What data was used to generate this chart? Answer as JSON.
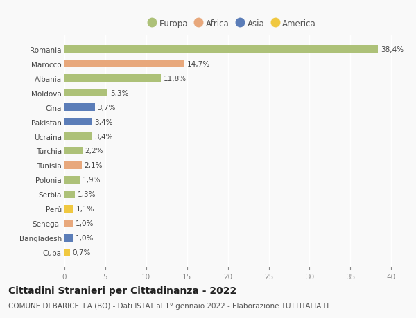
{
  "countries": [
    "Romania",
    "Marocco",
    "Albania",
    "Moldova",
    "Cina",
    "Pakistan",
    "Ucraina",
    "Turchia",
    "Tunisia",
    "Polonia",
    "Serbia",
    "Perù",
    "Senegal",
    "Bangladesh",
    "Cuba"
  ],
  "values": [
    38.4,
    14.7,
    11.8,
    5.3,
    3.7,
    3.4,
    3.4,
    2.2,
    2.1,
    1.9,
    1.3,
    1.1,
    1.0,
    1.0,
    0.7
  ],
  "labels": [
    "38,4%",
    "14,7%",
    "11,8%",
    "5,3%",
    "3,7%",
    "3,4%",
    "3,4%",
    "2,2%",
    "2,1%",
    "1,9%",
    "1,3%",
    "1,1%",
    "1,0%",
    "1,0%",
    "0,7%"
  ],
  "continents": [
    "Europa",
    "Africa",
    "Europa",
    "Europa",
    "Asia",
    "Asia",
    "Europa",
    "Europa",
    "Africa",
    "Europa",
    "Europa",
    "America",
    "Africa",
    "Asia",
    "America"
  ],
  "continent_colors": {
    "Europa": "#adc178",
    "Africa": "#e8a87c",
    "Asia": "#5b7db8",
    "America": "#f0c840"
  },
  "legend_order": [
    "Europa",
    "Africa",
    "Asia",
    "America"
  ],
  "title1": "Cittadini Stranieri per Cittadinanza - 2022",
  "title2": "COMUNE DI BARICELLA (BO) - Dati ISTAT al 1° gennaio 2022 - Elaborazione TUTTITALIA.IT",
  "xlim": [
    0,
    41
  ],
  "xticks": [
    0,
    5,
    10,
    15,
    20,
    25,
    30,
    35,
    40
  ],
  "background_color": "#f9f9f9",
  "grid_color": "#ffffff",
  "bar_height": 0.55,
  "label_fontsize": 7.5,
  "tick_fontsize": 7.5,
  "title1_fontsize": 10,
  "title2_fontsize": 7.5
}
